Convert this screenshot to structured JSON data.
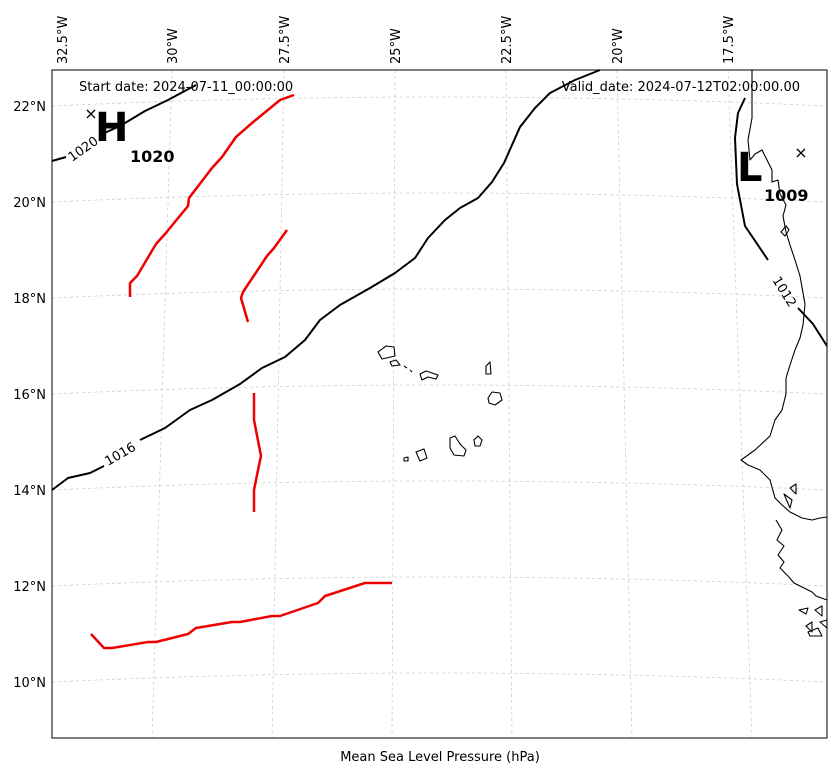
{
  "header": {
    "start_date": "Start date: 2024-07-11_00:00:00",
    "valid_date": "Valid_date: 2024-07-12T02:00:00.00"
  },
  "caption": "Mean Sea Level Pressure (hPa)",
  "axes": {
    "lon_ticks": [
      "32.5°W",
      "30°W",
      "27.5°W",
      "25°W",
      "22.5°W",
      "20°W",
      "17.5°W"
    ],
    "lat_ticks": [
      "22°N",
      "20°N",
      "18°N",
      "16°N",
      "14°N",
      "12°N",
      "10°N"
    ],
    "grid": true
  },
  "pressure_centers": [
    {
      "type": "H",
      "value": "1020"
    },
    {
      "type": "L",
      "value": "1009"
    }
  ],
  "isobar_labels": [
    "1020",
    "1016",
    "1012"
  ],
  "colors": {
    "isobar": "#000000",
    "front": "#ee0000",
    "coastline": "#000000",
    "grid": "#cccccc"
  }
}
